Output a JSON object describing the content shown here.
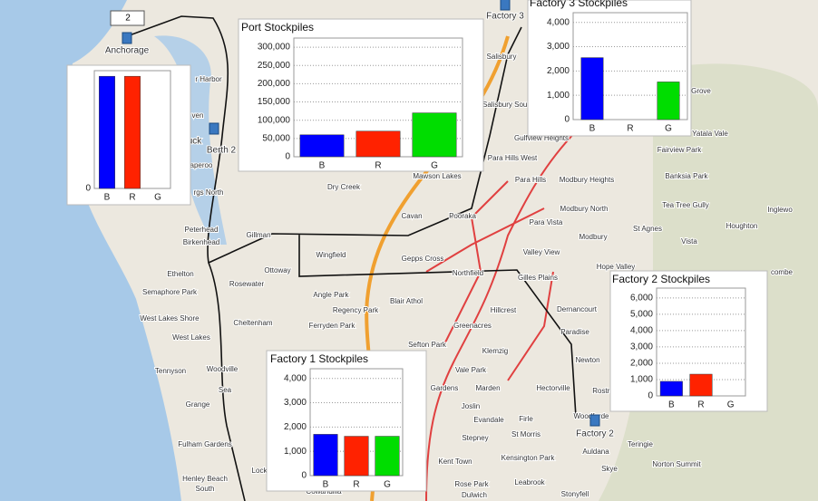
{
  "chart_data": [
    {
      "type": "bar",
      "categories": [
        "B",
        "R",
        "G"
      ],
      "values": [
        1,
        1,
        0
      ],
      "colors": [
        "#0000ff",
        "#ff2200",
        "#00dd00"
      ],
      "ylim": [
        0,
        1.05
      ],
      "yticks": [
        0
      ],
      "grid": true
    },
    {
      "type": "bar",
      "title": "Port Stockpiles",
      "categories": [
        "B",
        "R",
        "G"
      ],
      "values": [
        60000,
        70000,
        120000
      ],
      "colors": [
        "#0000ff",
        "#ff2200",
        "#00dd00"
      ],
      "ylim": [
        0,
        325000
      ],
      "yticks": [
        0,
        {
          "value": 50000,
          "label": "50,000"
        },
        {
          "value": 100000,
          "label": "100,000"
        },
        {
          "value": 150000,
          "label": "150,000"
        },
        {
          "value": 200000,
          "label": "200,000"
        },
        {
          "value": 250000,
          "label": "250,000"
        },
        {
          "value": 300000,
          "label": "300,000"
        }
      ],
      "grid": true
    },
    {
      "type": "bar",
      "title": "Factory 3 Stockpiles",
      "categories": [
        "B",
        "R",
        "G"
      ],
      "values": [
        2550,
        0,
        1550
      ],
      "colors": [
        "#0000ff",
        "#ff2200",
        "#00dd00"
      ],
      "ylim": [
        0,
        4400
      ],
      "yticks": [
        0,
        {
          "value": 1000,
          "label": "1,000"
        },
        {
          "value": 2000,
          "label": "2,000"
        },
        {
          "value": 3000,
          "label": "3,000"
        },
        {
          "value": 4000,
          "label": "4,000"
        }
      ],
      "grid": true
    },
    {
      "type": "bar",
      "title": "Factory 2 Stockpiles",
      "categories": [
        "B",
        "R",
        "G"
      ],
      "values": [
        890,
        1330,
        0
      ],
      "colors": [
        "#0000ff",
        "#ff2200",
        "#00dd00"
      ],
      "ylim": [
        0,
        6600
      ],
      "yticks": [
        0,
        {
          "value": 1000,
          "label": "1,000"
        },
        {
          "value": 2000,
          "label": "2,000"
        },
        {
          "value": 3000,
          "label": "3,000"
        },
        {
          "value": 4000,
          "label": "4,000"
        },
        {
          "value": 5000,
          "label": "5,000"
        },
        {
          "value": 6000,
          "label": "6,000"
        }
      ],
      "grid": true
    },
    {
      "type": "bar",
      "title": "Factory 1 Stockpiles",
      "categories": [
        "B",
        "R",
        "G"
      ],
      "values": [
        1700,
        1620,
        1620
      ],
      "colors": [
        "#0000ff",
        "#ff2200",
        "#00dd00"
      ],
      "ylim": [
        0,
        4400
      ],
      "yticks": [
        0,
        {
          "value": 1000,
          "label": "1,000"
        },
        {
          "value": 2000,
          "label": "2,000"
        },
        {
          "value": 3000,
          "label": "3,000"
        },
        {
          "value": 4000,
          "label": "4,000"
        }
      ],
      "grid": true
    }
  ],
  "map": {
    "anchorage_count": "2",
    "markers": [
      "Anchorage",
      "Factory 3",
      "Factory 2",
      "Berth 2",
      "Truck"
    ],
    "places": [
      "Salisbury",
      "Salisbury South",
      "Gulfview Heights",
      "Para Hills West",
      "Para Hills",
      "Modbury Heights",
      "Modbury North",
      "Para Vista",
      "Modbury",
      "St Agnes",
      "Valley View",
      "Hope Valley",
      "Vista",
      "Tea Tree Gully",
      "Houghton",
      "Inglewo",
      "Banksia Park",
      "Fairview Park",
      "Yatala Vale",
      "Grove",
      "combe",
      "Dry Creek",
      "Mawson Lakes",
      "Cavan",
      "Pooraka",
      "Gepps Cross",
      "Wingfield",
      "Gillman",
      "Ottoway",
      "Rosewater",
      "Northfield",
      "Gilles Plains",
      "Angle Park",
      "Blair Athol",
      "Regency Park",
      "Ferryden Park",
      "Hillcrest",
      "Dernancourt",
      "Greenacres",
      "Paradise",
      "Sefton Park",
      "Klemzig",
      "Newton",
      "Vale Park",
      "Hectorville",
      "Rostre",
      "Gardens",
      "Marden",
      "Joslin",
      "Woodforde",
      "Evandale",
      "Firle",
      "Stepney",
      "St Morris",
      "Auldana",
      "Teringie",
      "Kent Town",
      "Kensington Park",
      "Norton Summit",
      "Skye",
      "Rose Park",
      "Leabrook",
      "Stonyfell",
      "Dulwich",
      "Semaphore Park",
      "West Lakes Shore",
      "West Lakes",
      "Ethelton",
      "Peterhead",
      "Birkenhead",
      "Cheltenham",
      "Tennyson",
      "Woodville",
      "Grange",
      "Fulham Gardens",
      "Henley Beach",
      "South",
      "Sea",
      "Lock",
      "Cowandilla",
      "r Harbor",
      "ven",
      "aperoo",
      "rgs North"
    ]
  }
}
